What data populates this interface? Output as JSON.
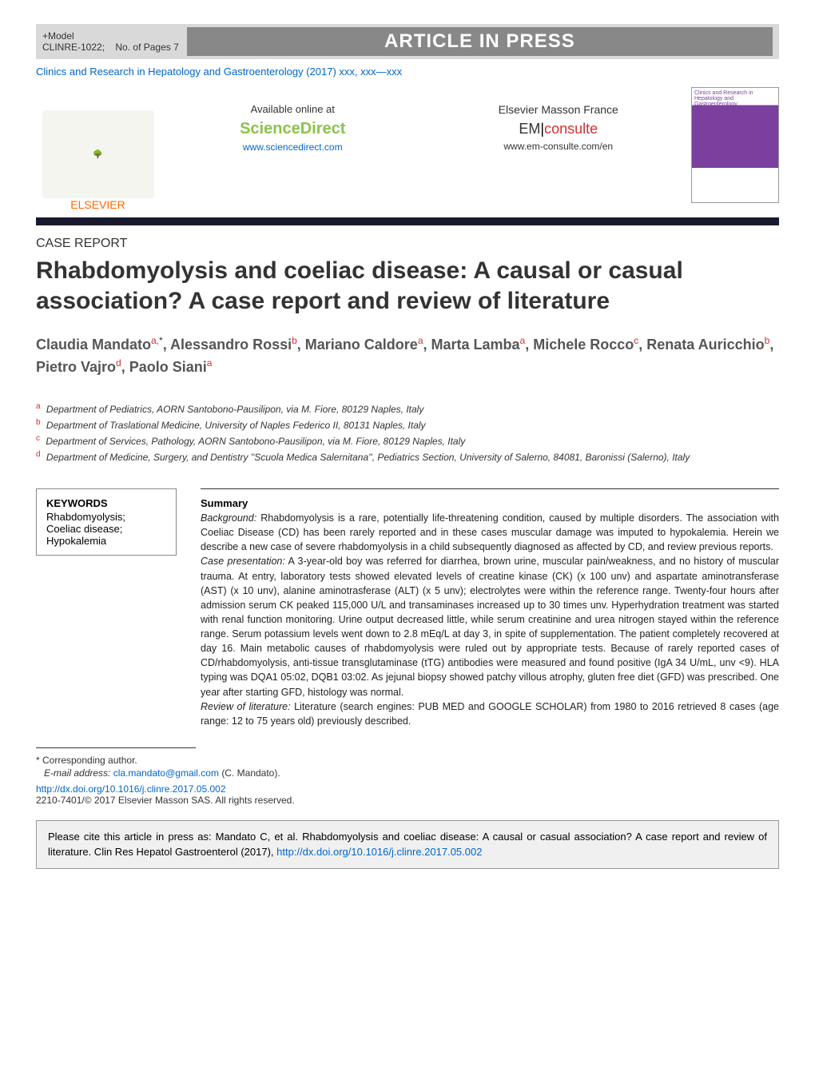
{
  "topbar": {
    "model_label": "+Model",
    "ref": "CLINRE-1022;",
    "pages_label": "No. of Pages 7",
    "banner": "ARTICLE IN PRESS"
  },
  "citation": "Clinics and Research in Hepatology and Gastroenterology (2017) xxx, xxx—xxx",
  "header": {
    "elsevier": "ELSEVIER",
    "available_label": "Available online at",
    "sciencedirect": "ScienceDirect",
    "sd_url": "www.sciencedirect.com",
    "masson_label": "Elsevier Masson France",
    "em_prefix": "EM",
    "em_suffix": "consulte",
    "em_url": "www.em-consulte.com/en",
    "cover_caption": "Clinics and Research in Hepatology and Gastroenterology"
  },
  "article_type": "CASE REPORT",
  "title": "Rhabdomyolysis and coeliac disease: A causal or casual association? A case report and review of literature",
  "authors_html": "Claudia Mandato<sup>a,</sup><sup class='star'>*</sup>, Alessandro Rossi<sup>b</sup>, Mariano Caldore<sup>a</sup>, Marta Lamba<sup>a</sup>, Michele Rocco<sup>c</sup>, Renata Auricchio<sup>b</sup>, Pietro Vajro<sup>d</sup>, Paolo Siani<sup>a</sup>",
  "affiliations": [
    {
      "sup": "a",
      "text": "Department of Pediatrics, AORN Santobono-Pausilipon, via M. Fiore, 80129 Naples, Italy"
    },
    {
      "sup": "b",
      "text": "Department of Traslational Medicine, University of Naples Federico II, 80131 Naples, Italy"
    },
    {
      "sup": "c",
      "text": "Department of Services, Pathology, AORN Santobono-Pausilipon, via M. Fiore, 80129 Naples, Italy"
    },
    {
      "sup": "d",
      "text": "Department of Medicine, Surgery, and Dentistry ''Scuola Medica Salernitana'', Pediatrics Section, University of Salerno, 84081, Baronissi (Salerno), Italy"
    }
  ],
  "keywords": {
    "heading": "KEYWORDS",
    "items": [
      "Rhabdomyolysis;",
      "Coeliac disease;",
      "Hypokalemia"
    ]
  },
  "summary": {
    "heading": "Summary",
    "background_label": "Background:",
    "background": "Rhabdomyolysis is a rare, potentially life-threatening condition, caused by multiple disorders. The association with Coeliac Disease (CD) has been rarely reported and in these cases muscular damage was imputed to hypokalemia. Herein we describe a new case of severe rhabdomyolysis in a child subsequently diagnosed as affected by CD, and review previous reports.",
    "case_label": "Case presentation:",
    "case": "A 3-year-old boy was referred for diarrhea, brown urine, muscular pain/weakness, and no history of muscular trauma. At entry, laboratory tests showed elevated levels of creatine kinase (CK) (x 100 unv) and aspartate aminotransferase (AST) (x 10 unv), alanine aminotrasferase (ALT) (x 5 unv); electrolytes were within the reference range. Twenty-four hours after admission serum CK peaked 115,000 U/L and transaminases increased up to 30 times unv. Hyperhydration treatment was started with renal function monitoring. Urine output decreased little, while serum creatinine and urea nitrogen stayed within the reference range. Serum potassium levels went down to 2.8 mEq/L at day 3, in spite of supplementation. The patient completely recovered at day 16. Main metabolic causes of rhabdomyolysis were ruled out by appropriate tests. Because of rarely reported cases of CD/rhabdomyolysis, anti-tissue transglutaminase (tTG) antibodies were measured and found positive (IgA 34 U/mL, unv <9). HLA typing was DQA1 05:02, DQB1 03:02. As jejunal biopsy showed patchy villous atrophy, gluten free diet (GFD) was prescribed. One year after starting GFD, histology was normal.",
    "review_label": "Review of literature:",
    "review": "Literature (search engines: PUB MED and GOOGLE SCHOLAR) from 1980 to 2016 retrieved 8 cases (age range: 12 to 75 years old) previously described."
  },
  "footnotes": {
    "corresponding": "* Corresponding author.",
    "email_label": "E-mail address:",
    "email": "cla.mandato@gmail.com",
    "email_suffix": "(C. Mandato).",
    "doi": "http://dx.doi.org/10.1016/j.clinre.2017.05.002",
    "copyright": "2210-7401/© 2017 Elsevier Masson SAS. All rights reserved."
  },
  "citebox": {
    "text": "Please cite this article in press as: Mandato C, et al. Rhabdomyolysis and coeliac disease: A causal or casual association? A case report and review of literature. Clin Res Hepatol Gastroenterol (2017),",
    "doi": "http://dx.doi.org/10.1016/j.clinre.2017.05.002"
  },
  "colors": {
    "banner_bg": "#888888",
    "link": "#0066cc",
    "accent_red": "#d32f2f",
    "sd_green": "#8bc34a",
    "elsevier_orange": "#ff6600",
    "divider": "#1a1a2e"
  }
}
